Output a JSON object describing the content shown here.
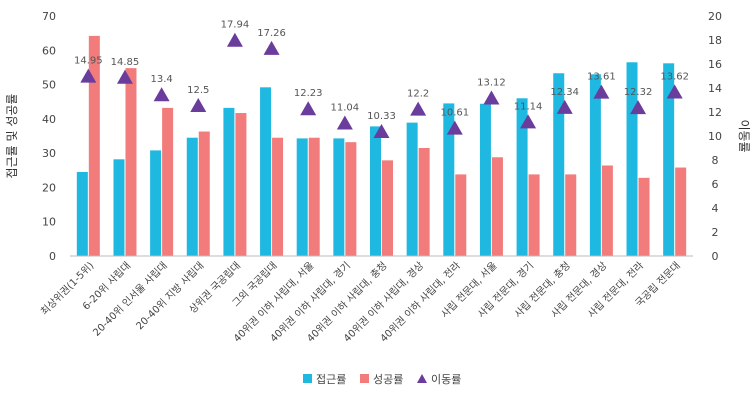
{
  "chart_data": {
    "type": "bar",
    "categories": [
      "최상위권(1-5위)",
      "6-20위 사립대",
      "20-40위 인서울 사립대",
      "20-40위 지방 사립대",
      "상위권 국공립대",
      "그외 국공립대",
      "40위권 이하 사립대, 서울",
      "40위권 이하 사립대, 경기",
      "40위권 이하 사립대, 충청",
      "40위권 이하 사립대, 경상",
      "40위권 이하 사립대, 전라",
      "사립 전문대, 서울",
      "사립 전문대, 경기",
      "사립 전문대, 충청",
      "사립 전문대, 경상",
      "사립 전문대, 전라",
      "국공립 전문대"
    ],
    "series": [
      {
        "name": "접근률",
        "axis": "left",
        "color": "#1fb8e0",
        "values": [
          24.5,
          28.2,
          30.8,
          34.5,
          43.2,
          49.2,
          34.3,
          34.3,
          37.8,
          38.9,
          44.5,
          44.4,
          46.0,
          53.3,
          53.0,
          56.5,
          56.2
        ]
      },
      {
        "name": "성공률",
        "axis": "left",
        "color": "#f27c7c",
        "values": [
          64.2,
          54.8,
          43.2,
          36.3,
          41.7,
          34.5,
          34.5,
          33.2,
          27.9,
          31.5,
          23.8,
          28.8,
          23.8,
          23.8,
          26.4,
          22.8,
          25.8
        ]
      },
      {
        "name": "이동률",
        "axis": "right",
        "color": "#6a3c9c",
        "marker": "triangle",
        "values": [
          14.95,
          14.85,
          13.4,
          12.5,
          17.94,
          17.26,
          12.23,
          11.04,
          10.33,
          12.2,
          10.61,
          13.12,
          11.14,
          12.34,
          13.61,
          12.32,
          13.62
        ]
      }
    ],
    "data_labels": [
      "14.95",
      "14.85",
      "13.4",
      "12.5",
      "17.94",
      "17.26",
      "12.23",
      "11.04",
      "10.33",
      "12.2",
      "10.61",
      "13.12",
      "11.14",
      "12.34",
      "13.61",
      "12.32",
      "13.62"
    ],
    "ylabel": "접근률 및 성공률",
    "y2label": "이동률",
    "ylim": [
      0,
      70
    ],
    "y2lim": [
      0,
      20
    ],
    "yticks": [
      "0",
      "10",
      "20",
      "30",
      "40",
      "50",
      "60",
      "70"
    ],
    "y2ticks": [
      "0",
      "2",
      "4",
      "6",
      "8",
      "10",
      "12",
      "14",
      "16",
      "18",
      "20"
    ],
    "legend_position": "bottom-center",
    "grid": false
  }
}
